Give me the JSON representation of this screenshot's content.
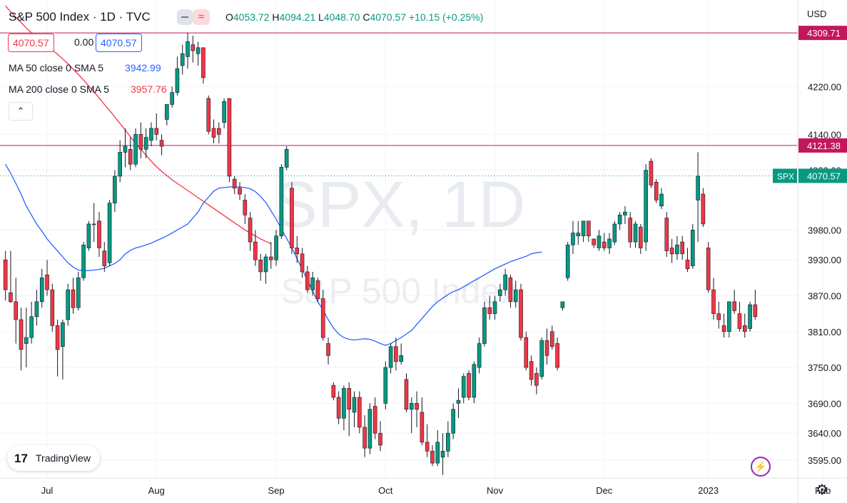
{
  "header": {
    "symbol_title": "S&P 500 Index · 1D · TVC",
    "ohlc": {
      "o_label": "O",
      "o": "4053.72",
      "h_label": "H",
      "h": "4094.21",
      "l_label": "L",
      "l": "4048.70",
      "c_label": "C",
      "c": "4070.57",
      "change": "+10.15 (+0.25%)"
    },
    "pill_icon": "≈",
    "bid": "4070.57",
    "spread": "0.00",
    "ask": "4070.57",
    "ma50_label": "MA 50 close 0 SMA 5",
    "ma50_value": "3942.99",
    "ma200_label": "MA 200 close 0 SMA 5",
    "ma200_value": "3957.76",
    "collapse_icon": "⌃",
    "currency": "USD"
  },
  "watermark": {
    "symbol": "SPX, 1D",
    "name": "S&P 500 Index"
  },
  "logo": {
    "mark": "17",
    "text": "TradingView"
  },
  "colors": {
    "up": "#089981",
    "down": "#f23645",
    "ma50": "#2962ff",
    "ma200": "#f23645",
    "hline": "#c2185b"
  },
  "chart_data": {
    "type": "candlestick",
    "title": "S&P 500 Index · 1D · TVC",
    "ylim": [
      3565,
      4360
    ],
    "y_ticks": [
      "4309.71",
      "4220.00",
      "4140.00",
      "4080.00",
      "3980.00",
      "3930.00",
      "3870.00",
      "3810.00",
      "3750.00",
      "3690.00",
      "3640.00",
      "3595.00"
    ],
    "y_tick_values": [
      4309.71,
      4220,
      4140,
      4080,
      3980,
      3930,
      3870,
      3810,
      3750,
      3690,
      3640,
      3595
    ],
    "x_labels": [
      "Jul",
      "Aug",
      "Sep",
      "Oct",
      "Nov",
      "Dec",
      "2023",
      "Feb"
    ],
    "x_label_index": [
      8,
      29,
      52,
      73,
      94,
      115,
      135,
      157
    ],
    "horizontal_lines": [
      {
        "price": 4309.71,
        "label": "4309.71"
      },
      {
        "price": 4121.38,
        "label": "4121.38"
      }
    ],
    "last_price": {
      "price": 4070.57,
      "label": "4070.57",
      "symbol": "SPX"
    },
    "series": [
      {
        "name": "MA 50 close 0 SMA 5",
        "values": [
          4090,
          4075,
          4058,
          4040,
          4020,
          4005,
          3990,
          3978,
          3965,
          3955,
          3945,
          3935,
          3925,
          3918,
          3913,
          3912,
          3912,
          3913,
          3914,
          3916,
          3920,
          3924,
          3930,
          3940,
          3946,
          3950,
          3952,
          3955,
          3958,
          3962,
          3966,
          3970,
          3975,
          3980,
          3985,
          3990,
          4000,
          4010,
          4025,
          4035,
          4045,
          4050,
          4051,
          4052,
          4052,
          4052,
          4051,
          4049,
          4044,
          4036,
          4026,
          4012,
          3998,
          3982,
          3966,
          3950,
          3932,
          3914,
          3896,
          3878,
          3860,
          3846,
          3830,
          3816,
          3806,
          3800,
          3797,
          3796,
          3797,
          3798,
          3797,
          3794,
          3790,
          3787,
          3790,
          3795,
          3800,
          3806,
          3812,
          3822,
          3832,
          3842,
          3852,
          3860,
          3866,
          3872,
          3877,
          3880,
          3885,
          3890,
          3895,
          3900,
          3905,
          3910,
          3915,
          3919,
          3923,
          3927,
          3930,
          3933,
          3936,
          3940,
          3942,
          3943
        ]
      },
      {
        "name": "MA 200 close 0 SMA 5",
        "values": [
          4355,
          4345,
          4336,
          4327,
          4318,
          4310,
          4302,
          4295,
          4288,
          4281,
          4274,
          4266,
          4258,
          4249,
          4240,
          4231,
          4221,
          4211,
          4201,
          4190,
          4180,
          4169,
          4158,
          4147,
          4136,
          4125,
          4115,
          4105,
          4095,
          4086,
          4078,
          4071,
          4064,
          4058,
          4052,
          4046,
          4040,
          4034,
          4028,
          4022,
          4016,
          4010,
          4004,
          3998,
          3992,
          3986,
          3980,
          3975,
          3970,
          3965,
          3961,
          3957
        ]
      }
    ],
    "ma50_start_index": 0,
    "ma200_start_index": 104,
    "candles": [
      [
        3930,
        3945,
        3880,
        3862
      ],
      [
        3875,
        3945,
        3860,
        3858
      ],
      [
        3860,
        3900,
        3830,
        3790
      ],
      [
        3830,
        3850,
        3780,
        3745
      ],
      [
        3790,
        3850,
        3800,
        3750
      ],
      [
        3800,
        3860,
        3835,
        3790
      ],
      [
        3835,
        3880,
        3860,
        3820
      ],
      [
        3860,
        3915,
        3900,
        3850
      ],
      [
        3905,
        3930,
        3880,
        3870
      ],
      [
        3880,
        3890,
        3820,
        3810
      ],
      [
        3820,
        3830,
        3780,
        3735
      ],
      [
        3785,
        3830,
        3825,
        3730
      ],
      [
        3830,
        3890,
        3880,
        3820
      ],
      [
        3880,
        3900,
        3850,
        3840
      ],
      [
        3850,
        3910,
        3900,
        3845
      ],
      [
        3900,
        3960,
        3955,
        3895
      ],
      [
        3950,
        3995,
        3990,
        3945
      ],
      [
        3990,
        4025,
        3990,
        3960
      ],
      [
        3995,
        4010,
        3950,
        3935
      ],
      [
        3945,
        3960,
        3920,
        3910
      ],
      [
        3925,
        4030,
        4025,
        3920
      ],
      [
        4025,
        4080,
        4070,
        4010
      ],
      [
        4070,
        4130,
        4110,
        4060
      ],
      [
        4110,
        4150,
        4120,
        4085
      ],
      [
        4115,
        4135,
        4090,
        4080
      ],
      [
        4090,
        4150,
        4140,
        4085
      ],
      [
        4140,
        4160,
        4115,
        4100
      ],
      [
        4115,
        4150,
        4135,
        4100
      ],
      [
        4130,
        4160,
        4150,
        4120
      ],
      [
        4150,
        4175,
        4140,
        4130
      ],
      [
        4130,
        4140,
        4120,
        4105
      ],
      [
        4165,
        4180,
        4190,
        4155
      ],
      [
        4190,
        4220,
        4210,
        4185
      ],
      [
        4210,
        4270,
        4250,
        4205
      ],
      [
        4255,
        4290,
        4275,
        4240
      ],
      [
        4270,
        4310,
        4295,
        4250
      ],
      [
        4290,
        4305,
        4280,
        4260
      ],
      [
        4275,
        4295,
        4285,
        4255
      ],
      [
        4285,
        4285,
        4235,
        4225
      ],
      [
        4200,
        4205,
        4145,
        4140
      ],
      [
        4150,
        4165,
        4135,
        4125
      ],
      [
        4150,
        4160,
        4140,
        4125
      ],
      [
        4160,
        4200,
        4195,
        4150
      ],
      [
        4200,
        4200,
        4070,
        4060
      ],
      [
        4065,
        4070,
        4050,
        4040
      ],
      [
        4050,
        4060,
        4040,
        4030
      ],
      [
        4030,
        4040,
        4005,
        3990
      ],
      [
        4000,
        4010,
        3960,
        3945
      ],
      [
        3960,
        3980,
        3930,
        3920
      ],
      [
        3930,
        3940,
        3910,
        3895
      ],
      [
        3910,
        3940,
        3935,
        3890
      ],
      [
        3935,
        3960,
        3930,
        3915
      ],
      [
        3930,
        3980,
        3970,
        3920
      ],
      [
        3970,
        4090,
        4085,
        3965
      ],
      [
        4085,
        4120,
        4115,
        4080
      ],
      [
        4050,
        4060,
        3950,
        3940
      ],
      [
        3950,
        3970,
        3940,
        3925
      ],
      [
        3940,
        3950,
        3910,
        3900
      ],
      [
        3910,
        3920,
        3880,
        3875
      ],
      [
        3880,
        3910,
        3900,
        3870
      ],
      [
        3895,
        3900,
        3865,
        3860
      ],
      [
        3865,
        3880,
        3800,
        3795
      ],
      [
        3790,
        3800,
        3770,
        3755
      ],
      [
        3720,
        3725,
        3700,
        3695
      ],
      [
        3700,
        3710,
        3665,
        3655
      ],
      [
        3665,
        3720,
        3715,
        3645
      ],
      [
        3715,
        3725,
        3680,
        3635
      ],
      [
        3675,
        3710,
        3700,
        3650
      ],
      [
        3700,
        3710,
        3650,
        3640
      ],
      [
        3650,
        3670,
        3615,
        3600
      ],
      [
        3615,
        3690,
        3680,
        3605
      ],
      [
        3685,
        3700,
        3640,
        3630
      ],
      [
        3640,
        3660,
        3620,
        3610
      ],
      [
        3690,
        3760,
        3750,
        3680
      ],
      [
        3750,
        3790,
        3785,
        3740
      ],
      [
        3785,
        3800,
        3760,
        3745
      ],
      [
        3760,
        3790,
        3770,
        3755
      ],
      [
        3730,
        3740,
        3680,
        3675
      ],
      [
        3680,
        3700,
        3690,
        3640
      ],
      [
        3690,
        3710,
        3680,
        3650
      ],
      [
        3675,
        3700,
        3625,
        3620
      ],
      [
        3625,
        3655,
        3610,
        3600
      ],
      [
        3610,
        3620,
        3590,
        3585
      ],
      [
        3590,
        3645,
        3625,
        3585
      ],
      [
        3600,
        3640,
        3610,
        3570
      ],
      [
        3610,
        3660,
        3640,
        3600
      ],
      [
        3640,
        3690,
        3680,
        3630
      ],
      [
        3690,
        3715,
        3695,
        3665
      ],
      [
        3700,
        3740,
        3735,
        3690
      ],
      [
        3740,
        3745,
        3700,
        3695
      ],
      [
        3700,
        3760,
        3755,
        3690
      ],
      [
        3750,
        3800,
        3790,
        3740
      ],
      [
        3790,
        3860,
        3850,
        3785
      ],
      [
        3850,
        3870,
        3840,
        3830
      ],
      [
        3840,
        3870,
        3860,
        3830
      ],
      [
        3870,
        3890,
        3880,
        3860
      ],
      [
        3880,
        3915,
        3905,
        3870
      ],
      [
        3900,
        3905,
        3860,
        3850
      ],
      [
        3860,
        3895,
        3880,
        3850
      ],
      [
        3880,
        3890,
        3800,
        3795
      ],
      [
        3800,
        3810,
        3750,
        3745
      ],
      [
        3760,
        3770,
        3730,
        3720
      ],
      [
        3740,
        3750,
        3720,
        3705
      ],
      [
        3735,
        3800,
        3795,
        3730
      ],
      [
        3795,
        3815,
        3770,
        3755
      ],
      [
        3810,
        3820,
        3785,
        3780
      ],
      [
        3790,
        3800,
        3750,
        3745
      ],
      [
        3850,
        3860,
        3860,
        3845
      ],
      [
        3900,
        3960,
        3955,
        3895
      ],
      [
        3955,
        3995,
        3975,
        3940
      ],
      [
        3970,
        3995,
        3975,
        3955
      ],
      [
        3970,
        3995,
        3995,
        3960
      ],
      [
        3995,
        3990,
        3970,
        3960
      ],
      [
        3965,
        3965,
        3955,
        3950
      ],
      [
        3950,
        3980,
        3970,
        3945
      ],
      [
        3960,
        3975,
        3950,
        3945
      ],
      [
        3950,
        3975,
        3965,
        3940
      ],
      [
        3960,
        3995,
        3990,
        3955
      ],
      [
        3990,
        4010,
        4005,
        3980
      ],
      [
        4005,
        4020,
        4010,
        3990
      ],
      [
        4000,
        4010,
        3960,
        3950
      ],
      [
        3960,
        3995,
        3990,
        3950
      ],
      [
        3985,
        3990,
        3950,
        3940
      ],
      [
        3960,
        4090,
        4080,
        3945
      ],
      [
        4095,
        4100,
        4055,
        4050
      ],
      [
        4060,
        4065,
        4030,
        4025
      ],
      [
        4020,
        4050,
        4040,
        4015
      ],
      [
        4000,
        4010,
        3945,
        3935
      ],
      [
        3950,
        3965,
        3940,
        3925
      ],
      [
        3940,
        3970,
        3955,
        3930
      ],
      [
        3960,
        3970,
        3940,
        3930
      ],
      [
        3930,
        3950,
        3915,
        3910
      ],
      [
        3920,
        3990,
        3980,
        3915
      ],
      [
        4030,
        4110,
        4070,
        3960
      ],
      [
        4040,
        4050,
        3990,
        3985
      ],
      [
        3950,
        3960,
        3880,
        3875
      ],
      [
        3880,
        3900,
        3840,
        3830
      ],
      [
        3840,
        3860,
        3830,
        3815
      ],
      [
        3820,
        3840,
        3810,
        3800
      ],
      [
        3810,
        3840,
        3860,
        3800
      ],
      [
        3860,
        3880,
        3845,
        3840
      ],
      [
        3840,
        3860,
        3815,
        3810
      ],
      [
        3820,
        3840,
        3810,
        3800
      ],
      [
        3815,
        3860,
        3855,
        3810
      ],
      [
        3855,
        3880,
        3835,
        3830
      ]
    ]
  }
}
